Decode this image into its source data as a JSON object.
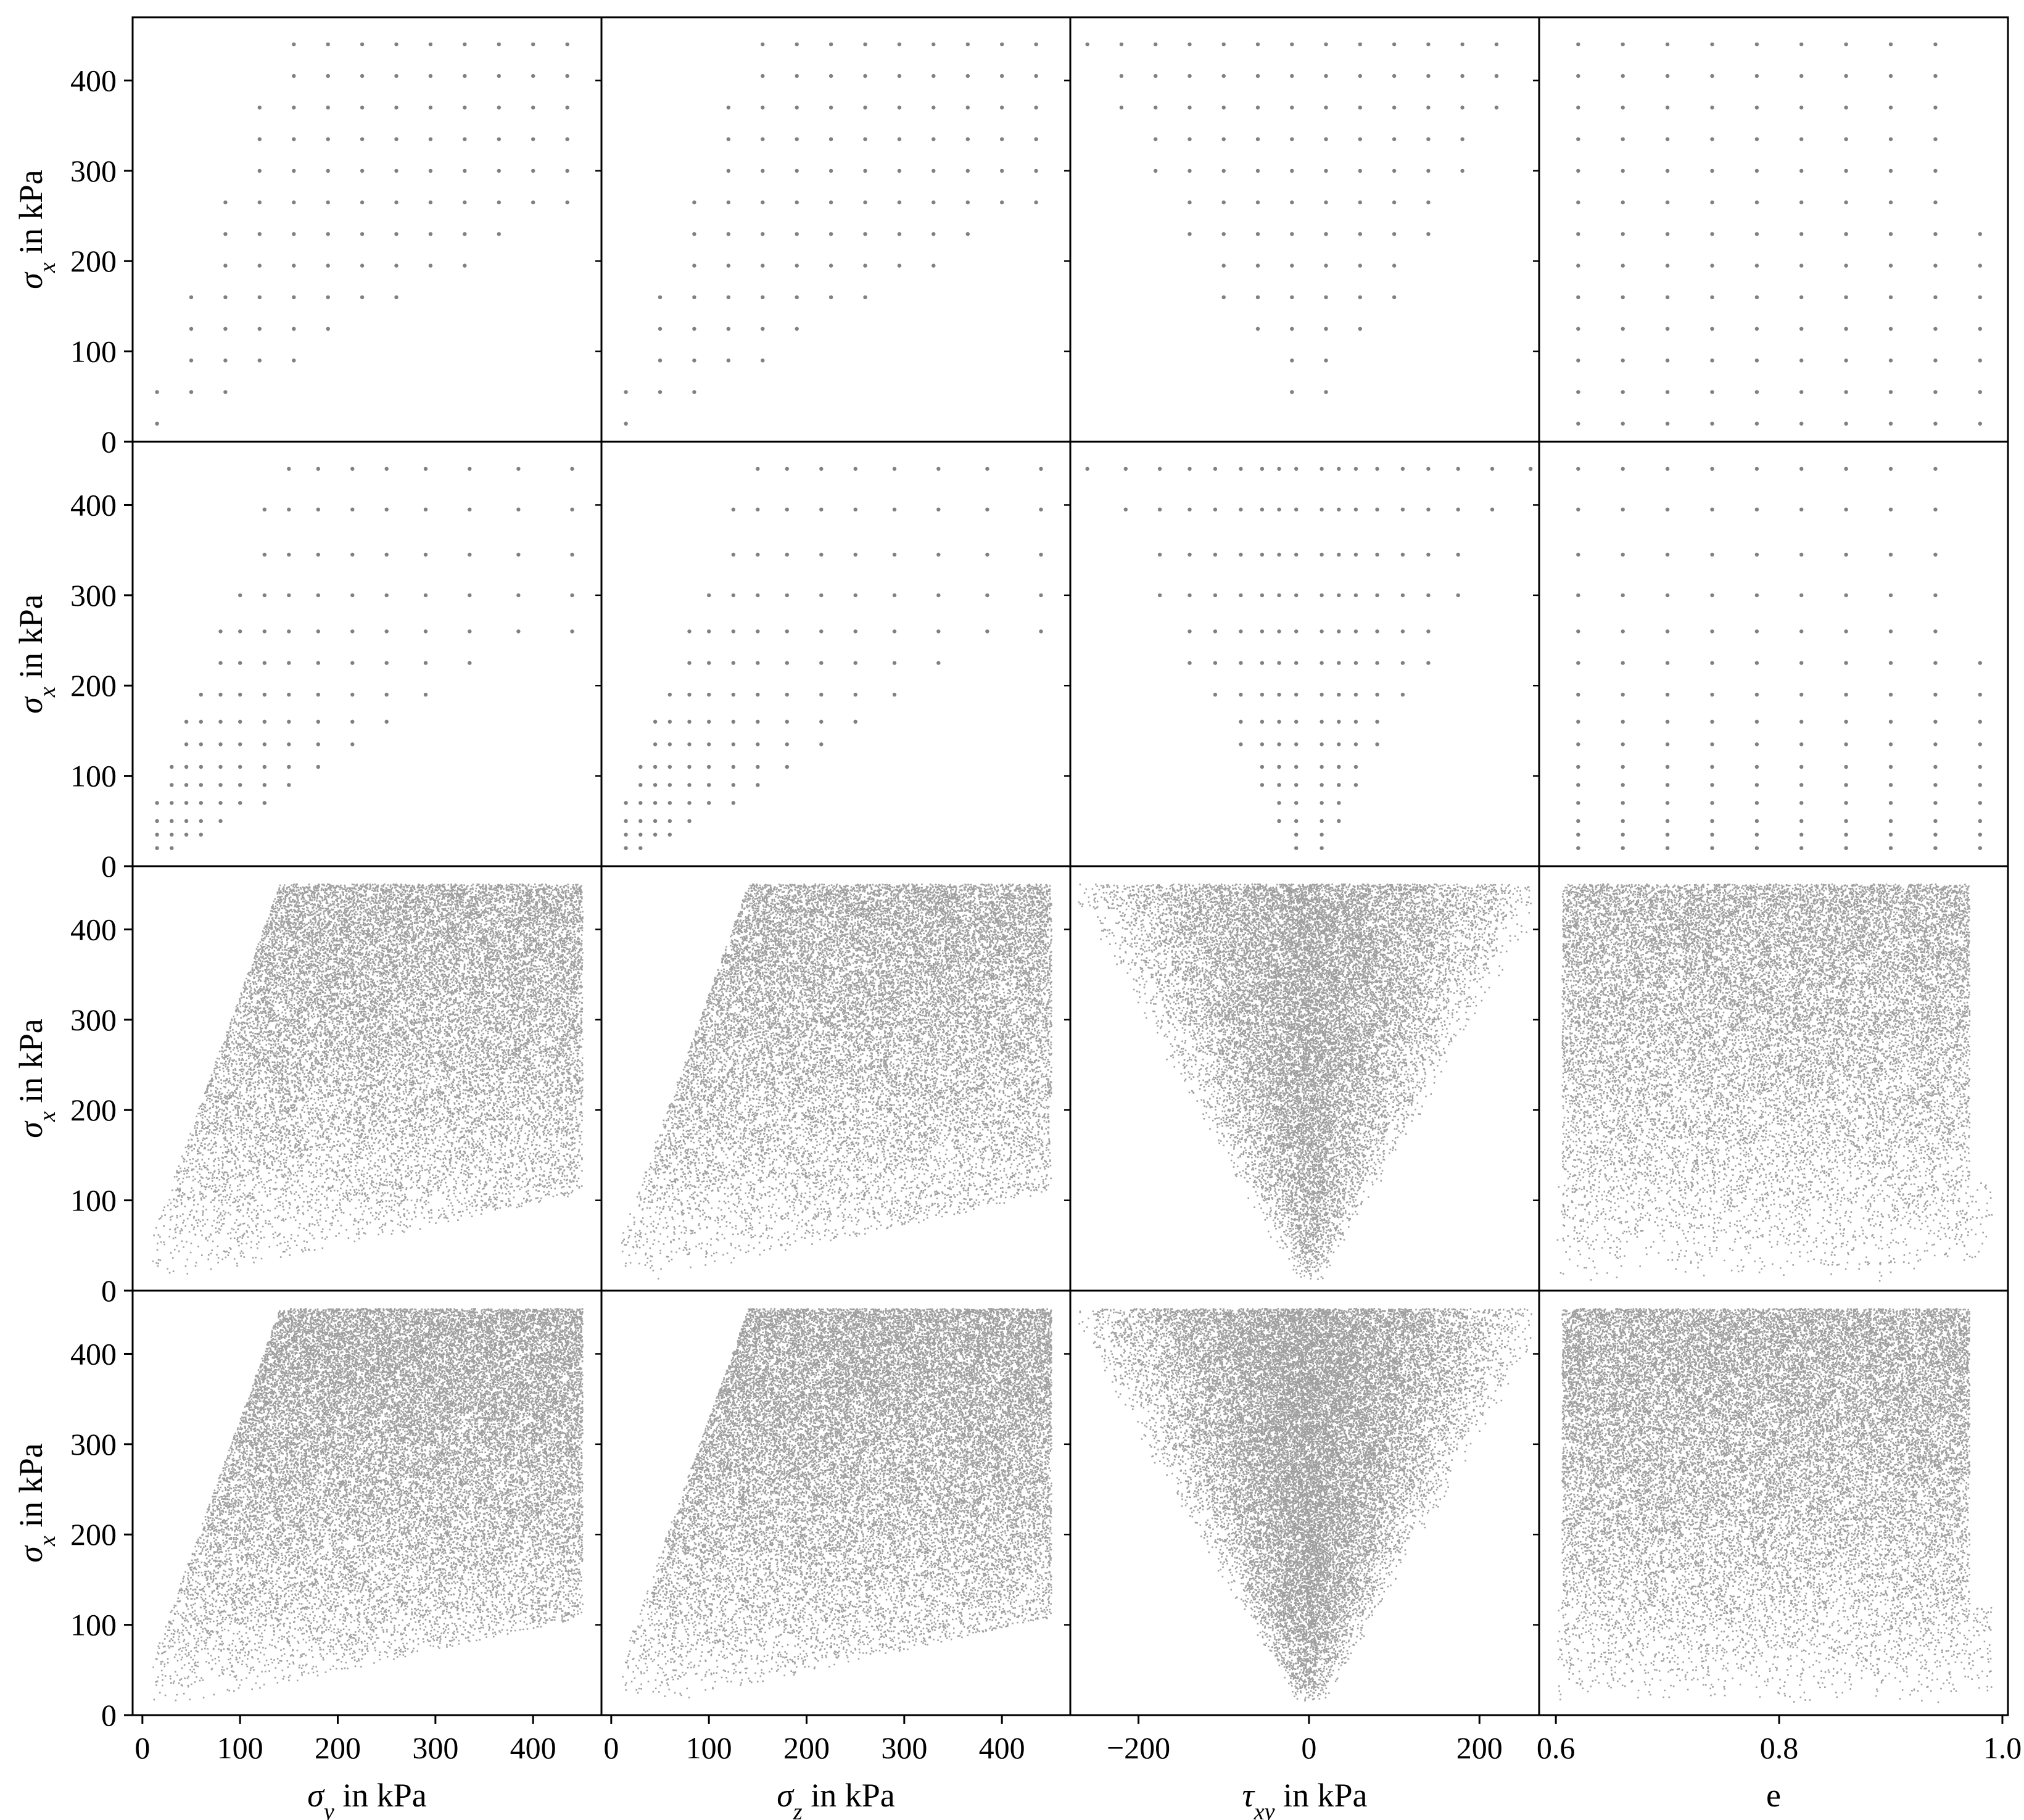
{
  "chart_data": {
    "type": "scatter",
    "layout": "scatter-matrix 4 rows x 4 columns",
    "marker_color": "#808080",
    "row_ylabels": [
      {
        "symbol": "σ",
        "sub": "x",
        "rest": " in kPa"
      },
      {
        "symbol": "σ",
        "sub": "x",
        "rest": " in kPa"
      },
      {
        "symbol": "σ",
        "sub": "x",
        "rest": " in kPa"
      },
      {
        "symbol": "σ",
        "sub": "x",
        "rest": " in kPa"
      }
    ],
    "ylim": [
      0,
      470
    ],
    "yticks": [
      0,
      100,
      200,
      300,
      400
    ],
    "columns": [
      {
        "xlabel": {
          "symbol": "σ",
          "sub": "y",
          "rest": " in kPa"
        },
        "xlim": [
          -10,
          470
        ],
        "xticks": [
          0,
          100,
          200,
          300,
          400
        ],
        "xtick_labels": [
          "0",
          "100",
          "200",
          "300",
          "400"
        ]
      },
      {
        "xlabel": {
          "symbol": "σ",
          "sub": "z",
          "rest": " in kPa"
        },
        "xlim": [
          -10,
          470
        ],
        "xticks": [
          0,
          100,
          200,
          300,
          400
        ],
        "xtick_labels": [
          "0",
          "100",
          "200",
          "300",
          "400"
        ]
      },
      {
        "xlabel": {
          "symbol": "τ",
          "sub": "xy",
          "rest": " in kPa"
        },
        "xlim": [
          -280,
          270
        ],
        "xticks": [
          -200,
          0,
          200
        ],
        "xtick_labels": [
          "−200",
          "0",
          "200"
        ]
      },
      {
        "xlabel": {
          "symbol": "",
          "sub": "",
          "rest": "e"
        },
        "xlim": [
          0.585,
          1.005
        ],
        "xticks": [
          0.6,
          0.8,
          1.0
        ],
        "xtick_labels": [
          "0.6",
          "0.8",
          "1.0"
        ]
      }
    ],
    "rows": [
      {
        "kind": "grid",
        "y_levels": [
          20,
          55,
          90,
          125,
          160,
          195,
          230,
          265,
          300,
          335,
          370,
          405,
          440
        ],
        "panels": [
          {
            "x_levels": [
              15,
              50,
              85,
              120,
              155,
              190,
              225,
              260,
              295,
              330,
              365,
              400,
              435
            ],
            "constraint": "y_between_0.6x_and_3x"
          },
          {
            "x_levels": [
              15,
              50,
              85,
              120,
              155,
              190,
              225,
              260,
              295,
              330,
              365,
              400,
              435
            ],
            "constraint": "y_between_0.6x_and_3x"
          },
          {
            "x_levels": [
              -260,
              -220,
              -180,
              -140,
              -100,
              -60,
              -20,
              20,
              60,
              100,
              140,
              180,
              220
            ],
            "constraint": "abs_x_below_0.6y"
          },
          {
            "x_levels": [
              0.62,
              0.66,
              0.7,
              0.74,
              0.78,
              0.82,
              0.86,
              0.9,
              0.94,
              0.98
            ],
            "constraint": "e_max_0.98_below_230"
          }
        ]
      },
      {
        "kind": "grid",
        "y_levels": [
          20,
          35,
          50,
          70,
          90,
          110,
          135,
          160,
          190,
          225,
          260,
          300,
          345,
          395,
          440
        ],
        "panels": [
          {
            "x_levels": [
              15,
              30,
              45,
              60,
              80,
              100,
              125,
              150,
              180,
              215,
              250,
              290,
              335,
              385,
              440
            ],
            "constraint": "y_between_0.6x_and_3x"
          },
          {
            "x_levels": [
              15,
              30,
              45,
              60,
              80,
              100,
              125,
              150,
              180,
              215,
              250,
              290,
              335,
              385,
              440
            ],
            "constraint": "y_between_0.6x_and_3x"
          },
          {
            "x_levels": [
              -260,
              -215,
              -175,
              -140,
              -110,
              -80,
              -55,
              -35,
              -15,
              15,
              35,
              55,
              80,
              110,
              140,
              175,
              215,
              260
            ],
            "constraint": "abs_x_below_0.6y"
          },
          {
            "x_levels": [
              0.62,
              0.66,
              0.7,
              0.74,
              0.78,
              0.82,
              0.86,
              0.9,
              0.94,
              0.98
            ],
            "constraint": "e_max_0.98_below_230"
          }
        ]
      },
      {
        "kind": "random",
        "count": 20000,
        "y_range": [
          10,
          450
        ],
        "panels": [
          "σy",
          "σz",
          "τxy",
          "e"
        ]
      },
      {
        "kind": "random",
        "count": 26000,
        "y_range": [
          10,
          450
        ],
        "panels": [
          "σy",
          "σz",
          "τxy",
          "e"
        ]
      }
    ]
  }
}
